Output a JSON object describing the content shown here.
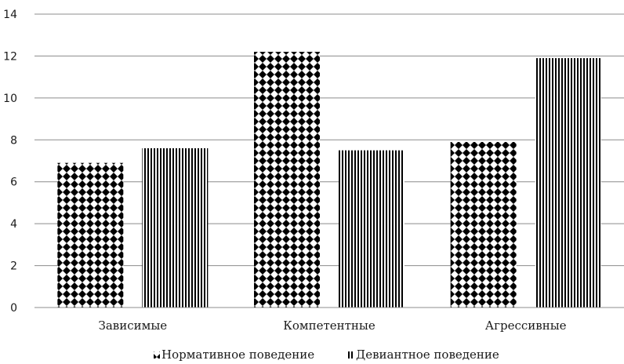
{
  "chart_data": {
    "type": "bar",
    "title": "",
    "xlabel": "",
    "ylabel": "",
    "categories": [
      "Зависимые",
      "Компетентные",
      "Агрессивные"
    ],
    "series": [
      {
        "name": "Нормативное поведение",
        "values": [
          6.9,
          12.2,
          7.9
        ],
        "pattern": "diamond-dots",
        "color": "#000000"
      },
      {
        "name": "Девиантное поведение",
        "values": [
          7.6,
          7.5,
          11.9
        ],
        "pattern": "vertical-stripes",
        "color": "#000000"
      }
    ],
    "ylim": [
      0,
      14
    ],
    "yticks": [
      0,
      2,
      4,
      6,
      8,
      10,
      12,
      14
    ],
    "grid": true,
    "legend_position": "bottom"
  }
}
